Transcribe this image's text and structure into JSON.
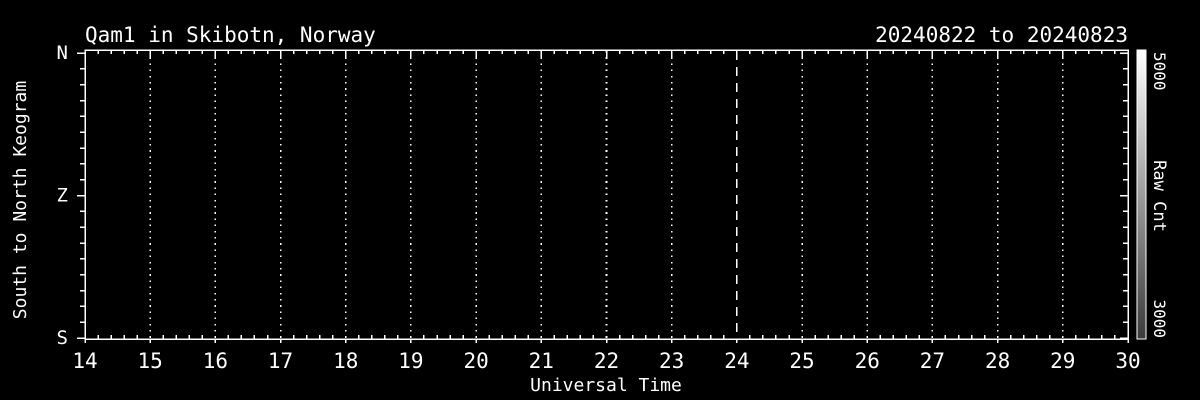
{
  "window": {
    "background": "#000000",
    "foreground": "#ffffff"
  },
  "chart_data": {
    "type": "heatmap",
    "title": "Qam1 in Skibotn, Norway",
    "date_range": "20240822 to 20240823",
    "xlabel": "Universal Time",
    "ylabel": "South to North Keogram",
    "xlim": [
      14,
      30
    ],
    "x_ticks": [
      14,
      15,
      16,
      17,
      18,
      19,
      20,
      21,
      22,
      23,
      24,
      25,
      26,
      27,
      28,
      29,
      30
    ],
    "x_minor_divisions": 5,
    "y_tick_labels": [
      "N",
      "Z",
      "S"
    ],
    "y_minor_divisions": 18,
    "grid": {
      "style": "dotted-vertical-at-each-hour",
      "hours": [
        15,
        16,
        17,
        18,
        19,
        20,
        21,
        22,
        23,
        25,
        26,
        27,
        28,
        29
      ]
    },
    "midnight_line": {
      "x": 24,
      "style": "dashed"
    },
    "plot_area_empty": true,
    "series": [],
    "colorbar": {
      "label": "Raw Cnt",
      "max_label": "5000",
      "min_label": "3000",
      "top_color": "#ffffff",
      "bottom_color": "#3a3a3a"
    }
  }
}
